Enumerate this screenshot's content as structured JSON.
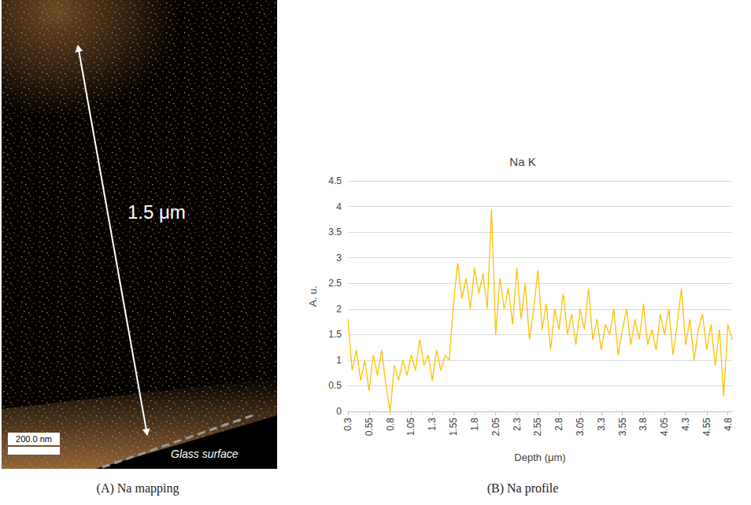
{
  "panel_a": {
    "caption": "(A) Na mapping",
    "arrow_label": "1.5 μm",
    "scale_bar": "200.0 nm",
    "surface_label": "Glass surface"
  },
  "panel_b_caption": "(B) Na profile",
  "chart_data": {
    "type": "line",
    "title": "Na K",
    "x_label": "Depth (μm)",
    "y_label": "A. u.",
    "color": "#FFC000",
    "grid": true,
    "x": [
      0.3,
      0.35,
      0.4,
      0.45,
      0.5,
      0.55,
      0.6,
      0.65,
      0.7,
      0.75,
      0.8,
      0.85,
      0.9,
      0.95,
      1.0,
      1.05,
      1.1,
      1.15,
      1.2,
      1.25,
      1.3,
      1.35,
      1.4,
      1.45,
      1.5,
      1.55,
      1.6,
      1.65,
      1.7,
      1.75,
      1.8,
      1.85,
      1.9,
      1.95,
      2.0,
      2.05,
      2.1,
      2.15,
      2.2,
      2.25,
      2.3,
      2.35,
      2.4,
      2.45,
      2.5,
      2.55,
      2.6,
      2.65,
      2.7,
      2.75,
      2.8,
      2.85,
      2.9,
      2.95,
      3.0,
      3.05,
      3.1,
      3.15,
      3.2,
      3.25,
      3.3,
      3.35,
      3.4,
      3.45,
      3.5,
      3.55,
      3.6,
      3.65,
      3.7,
      3.75,
      3.8,
      3.85,
      3.9,
      3.95,
      4.0,
      4.05,
      4.1,
      4.15,
      4.2,
      4.25,
      4.3,
      4.35,
      4.4,
      4.45,
      4.5,
      4.55,
      4.6,
      4.65,
      4.7,
      4.75,
      4.8,
      4.85
    ],
    "values": [
      1.8,
      0.8,
      1.2,
      0.6,
      1.0,
      0.4,
      1.1,
      0.7,
      1.2,
      0.5,
      0.0,
      0.9,
      0.6,
      1.0,
      0.7,
      1.1,
      0.8,
      1.4,
      0.9,
      1.1,
      0.6,
      1.2,
      0.8,
      1.1,
      1.0,
      2.1,
      2.9,
      2.2,
      2.6,
      2.0,
      2.8,
      2.3,
      2.7,
      2.0,
      3.95,
      1.5,
      2.6,
      2.0,
      2.4,
      1.7,
      2.8,
      1.8,
      2.5,
      1.4,
      2.0,
      2.75,
      1.6,
      2.1,
      1.2,
      2.0,
      1.6,
      2.3,
      1.5,
      1.9,
      1.3,
      2.0,
      1.6,
      2.4,
      1.4,
      1.8,
      1.2,
      1.7,
      1.5,
      2.0,
      1.1,
      1.6,
      2.0,
      1.3,
      1.8,
      1.4,
      2.1,
      1.3,
      1.6,
      1.2,
      1.9,
      1.5,
      2.0,
      1.1,
      1.7,
      2.4,
      1.3,
      1.8,
      1.0,
      1.6,
      1.9,
      1.2,
      1.7,
      0.9,
      1.6,
      0.3,
      1.7,
      1.4
    ],
    "xlim": [
      0.3,
      4.85
    ],
    "xticks": [
      0.3,
      0.55,
      0.8,
      1.05,
      1.3,
      1.55,
      1.8,
      2.05,
      2.3,
      2.55,
      2.8,
      3.05,
      3.3,
      3.55,
      3.8,
      4.05,
      4.3,
      4.55,
      4.8
    ],
    "ylim": [
      0,
      4.5
    ],
    "yticks": [
      0,
      0.5,
      1,
      1.5,
      2,
      2.5,
      3,
      3.5,
      4,
      4.5
    ]
  }
}
